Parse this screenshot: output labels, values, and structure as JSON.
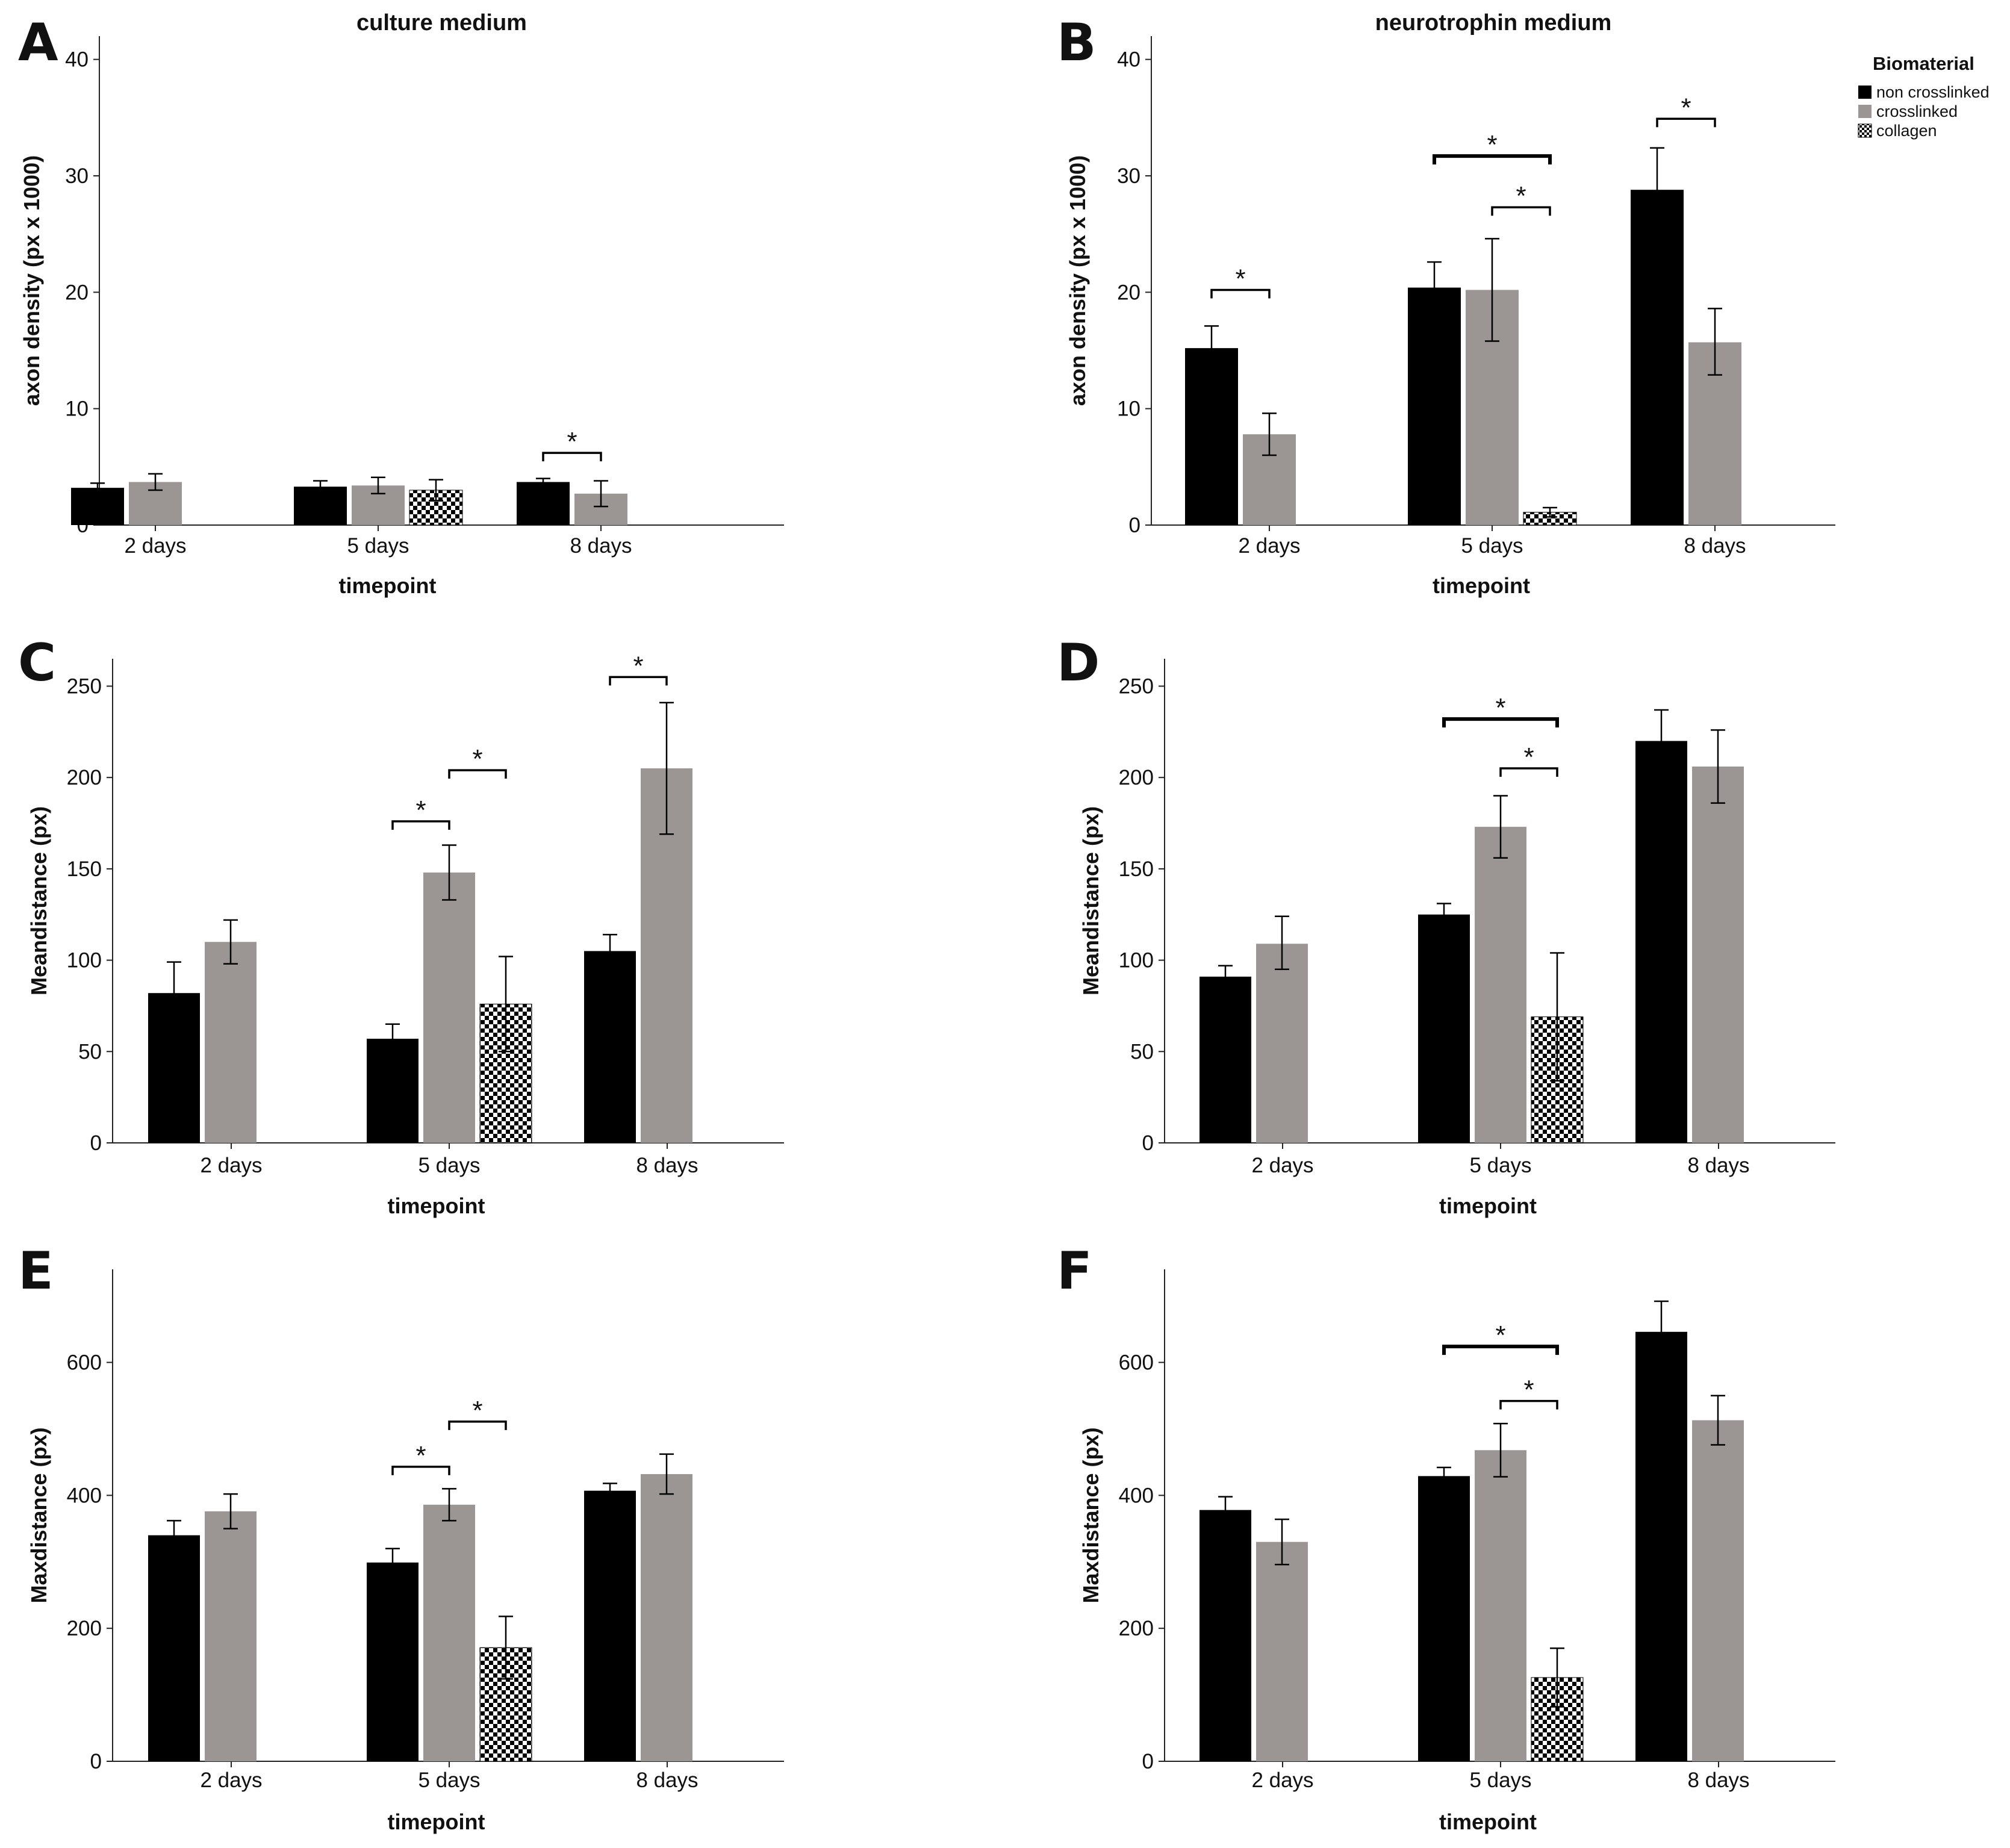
{
  "legend": {
    "title": "Biomaterial",
    "entries": [
      {
        "label": "non crosslinked",
        "pattern": "black"
      },
      {
        "label": "crosslinked",
        "pattern": "gray"
      },
      {
        "label": "collagen",
        "pattern": "checker"
      }
    ]
  },
  "colors": {
    "non_crosslinked": "#000000",
    "crosslinked": "#9b9594",
    "collagen_dark": "#000000",
    "collagen_light": "#ffffff"
  },
  "chart_data": [
    {
      "panel": "A",
      "type": "bar",
      "title": "culture medium",
      "xlabel": "timepoint",
      "ylabel": "axon density (px x 1000)",
      "categories": [
        "2 days",
        "5 days",
        "8 days"
      ],
      "ylim": [
        0,
        42
      ],
      "yticks": [
        0,
        10,
        20,
        30,
        40
      ],
      "series": [
        {
          "name": "non crosslinked",
          "values": [
            3.2,
            3.3,
            3.7
          ],
          "err": [
            [
              2.9,
              3.6
            ],
            [
              2.9,
              3.8
            ],
            [
              3.4,
              4.0
            ]
          ]
        },
        {
          "name": "crosslinked",
          "values": [
            3.7,
            3.4,
            2.7
          ],
          "err": [
            [
              3.0,
              4.4
            ],
            [
              2.7,
              4.1
            ],
            [
              1.6,
              3.8
            ]
          ]
        },
        {
          "name": "collagen",
          "values": [
            null,
            3.0,
            null
          ],
          "err": [
            null,
            [
              2.1,
              3.9
            ],
            null
          ]
        }
      ],
      "significance": [
        {
          "label": "*",
          "from": [
            2,
            0
          ],
          "to": [
            2,
            1
          ],
          "y": 6.2
        }
      ]
    },
    {
      "panel": "B",
      "type": "bar",
      "title": "neurotrophin medium",
      "xlabel": "timepoint",
      "ylabel": "axon density (px x 1000)",
      "categories": [
        "2 days",
        "5 days",
        "8 days"
      ],
      "ylim": [
        0,
        42
      ],
      "yticks": [
        0,
        10,
        20,
        30,
        40
      ],
      "series": [
        {
          "name": "non crosslinked",
          "values": [
            15.2,
            20.4,
            28.8
          ],
          "err": [
            [
              13.3,
              17.1
            ],
            [
              18.3,
              22.6
            ],
            [
              25.2,
              32.4
            ]
          ]
        },
        {
          "name": "crosslinked",
          "values": [
            7.8,
            20.2,
            15.7
          ],
          "err": [
            [
              6.0,
              9.6
            ],
            [
              15.8,
              24.6
            ],
            [
              12.9,
              18.6
            ]
          ]
        },
        {
          "name": "collagen",
          "values": [
            null,
            1.1,
            null
          ],
          "err": [
            null,
            [
              0.7,
              1.5
            ],
            null
          ]
        }
      ],
      "significance": [
        {
          "label": "*",
          "from": [
            0,
            0
          ],
          "to": [
            0,
            1
          ],
          "y": 20.2
        },
        {
          "label": "*",
          "from": [
            1,
            0
          ],
          "to": [
            1,
            2
          ],
          "y": 31.7
        },
        {
          "label": "*",
          "from": [
            1,
            1
          ],
          "to": [
            1,
            2
          ],
          "y": 27.3
        },
        {
          "label": "*",
          "from": [
            2,
            0
          ],
          "to": [
            2,
            1
          ],
          "y": 34.9
        }
      ]
    },
    {
      "panel": "C",
      "type": "bar",
      "xlabel": "timepoint",
      "ylabel": "Meandistance (px)",
      "categories": [
        "2 days",
        "5 days",
        "8 days"
      ],
      "ylim": [
        0,
        265
      ],
      "yticks": [
        0,
        50,
        100,
        150,
        200,
        250
      ],
      "series": [
        {
          "name": "non crosslinked",
          "values": [
            82,
            57,
            105
          ],
          "err": [
            [
              65,
              99
            ],
            [
              49,
              65
            ],
            [
              97,
              114
            ]
          ]
        },
        {
          "name": "crosslinked",
          "values": [
            110,
            148,
            205
          ],
          "err": [
            [
              98,
              122
            ],
            [
              133,
              163
            ],
            [
              169,
              241
            ]
          ]
        },
        {
          "name": "collagen",
          "values": [
            null,
            76,
            null
          ],
          "err": [
            null,
            [
              50,
              102
            ],
            null
          ]
        }
      ],
      "significance": [
        {
          "label": "*",
          "from": [
            1,
            0
          ],
          "to": [
            1,
            1
          ],
          "y": 176
        },
        {
          "label": "*",
          "from": [
            1,
            1
          ],
          "to": [
            1,
            2
          ],
          "y": 204
        },
        {
          "label": "*",
          "from": [
            2,
            0
          ],
          "to": [
            2,
            1
          ],
          "y": 255
        }
      ]
    },
    {
      "panel": "D",
      "type": "bar",
      "xlabel": "timepoint",
      "ylabel": "Meandistance (px)",
      "categories": [
        "2 days",
        "5 days",
        "8 days"
      ],
      "ylim": [
        0,
        265
      ],
      "yticks": [
        0,
        50,
        100,
        150,
        200,
        250
      ],
      "series": [
        {
          "name": "non crosslinked",
          "values": [
            91,
            125,
            220
          ],
          "err": [
            [
              86,
              97
            ],
            [
              119,
              131
            ],
            [
              204,
              237
            ]
          ]
        },
        {
          "name": "crosslinked",
          "values": [
            109,
            173,
            206
          ],
          "err": [
            [
              95,
              124
            ],
            [
              156,
              190
            ],
            [
              186,
              226
            ]
          ]
        },
        {
          "name": "collagen",
          "values": [
            null,
            69,
            null
          ],
          "err": [
            null,
            [
              34,
              104
            ],
            null
          ]
        }
      ],
      "significance": [
        {
          "label": "*",
          "from": [
            1,
            0
          ],
          "to": [
            1,
            2
          ],
          "y": 232
        },
        {
          "label": "*",
          "from": [
            1,
            1
          ],
          "to": [
            1,
            2
          ],
          "y": 205
        }
      ]
    },
    {
      "panel": "E",
      "type": "bar",
      "xlabel": "timepoint",
      "ylabel": "Maxdistance (px)",
      "categories": [
        "2 days",
        "5 days",
        "8 days"
      ],
      "ylim": [
        0,
        740
      ],
      "yticks": [
        0,
        200,
        400,
        600
      ],
      "series": [
        {
          "name": "non crosslinked",
          "values": [
            340,
            299,
            407
          ],
          "err": [
            [
              318,
              362
            ],
            [
              278,
              320
            ],
            [
              396,
              418
            ]
          ]
        },
        {
          "name": "crosslinked",
          "values": [
            376,
            386,
            432
          ],
          "err": [
            [
              350,
              402
            ],
            [
              362,
              410
            ],
            [
              402,
              462
            ]
          ]
        },
        {
          "name": "collagen",
          "values": [
            null,
            171,
            null
          ],
          "err": [
            null,
            [
              124,
              218
            ],
            null
          ]
        }
      ],
      "significance": [
        {
          "label": "*",
          "from": [
            1,
            0
          ],
          "to": [
            1,
            1
          ],
          "y": 443
        },
        {
          "label": "*",
          "from": [
            1,
            1
          ],
          "to": [
            1,
            2
          ],
          "y": 511
        }
      ]
    },
    {
      "panel": "F",
      "type": "bar",
      "xlabel": "timepoint",
      "ylabel": "Maxdistance (px)",
      "categories": [
        "2 days",
        "5 days",
        "8 days"
      ],
      "ylim": [
        0,
        740
      ],
      "yticks": [
        0,
        200,
        400,
        600
      ],
      "series": [
        {
          "name": "non crosslinked",
          "values": [
            378,
            429,
            646
          ],
          "err": [
            [
              358,
              398
            ],
            [
              416,
              442
            ],
            [
              600,
              692
            ]
          ]
        },
        {
          "name": "crosslinked",
          "values": [
            330,
            468,
            513
          ],
          "err": [
            [
              296,
              364
            ],
            [
              428,
              508
            ],
            [
              476,
              550
            ]
          ]
        },
        {
          "name": "collagen",
          "values": [
            null,
            126,
            null
          ],
          "err": [
            null,
            [
              82,
              170
            ],
            null
          ]
        }
      ],
      "significance": [
        {
          "label": "*",
          "from": [
            1,
            0
          ],
          "to": [
            1,
            2
          ],
          "y": 624
        },
        {
          "label": "*",
          "from": [
            1,
            1
          ],
          "to": [
            1,
            2
          ],
          "y": 542
        }
      ]
    }
  ]
}
